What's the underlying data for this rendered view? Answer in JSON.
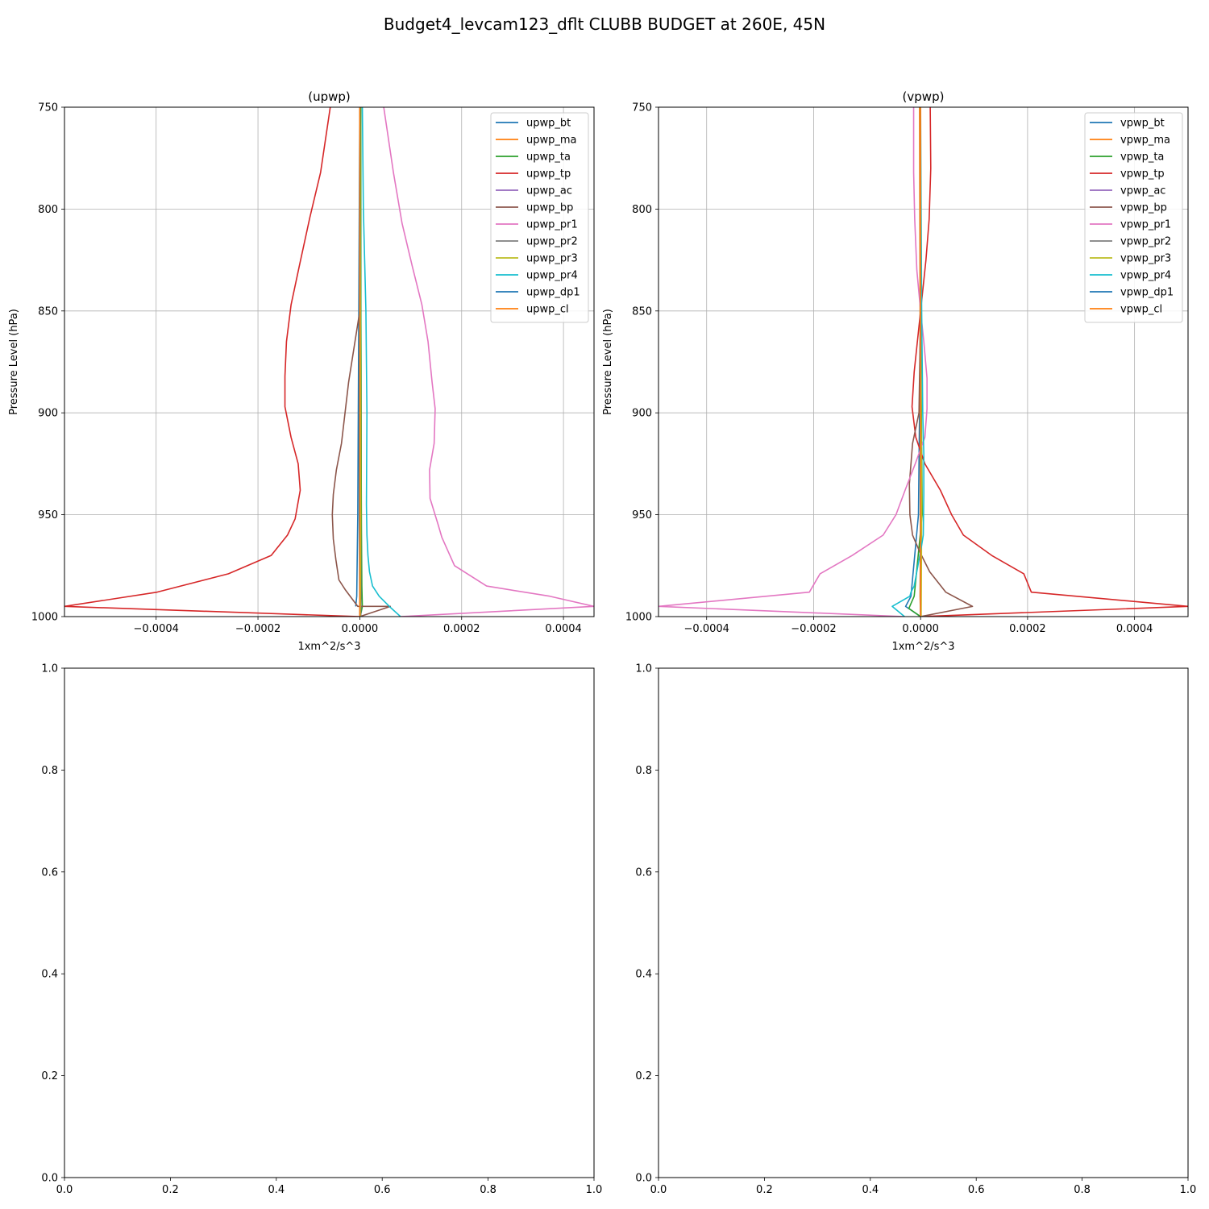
{
  "figure_title": "Budget4_levcam123_dflt CLUBB BUDGET at 260E, 45N",
  "chart_data": [
    {
      "type": "line",
      "title": "(upwp)",
      "xlabel": "1xm^2/s^3",
      "ylabel": "Pressure Level (hPa)",
      "xlim": [
        -0.00058,
        0.00046
      ],
      "ylim": [
        1000,
        750
      ],
      "xticks": [
        -0.0004,
        -0.0002,
        0.0,
        0.0002,
        0.0004
      ],
      "xtick_labels": [
        "−0.0004",
        "−0.0002",
        "0.0000",
        "0.0002",
        "0.0004"
      ],
      "yticks": [
        750,
        800,
        850,
        900,
        950,
        1000
      ],
      "ytick_labels": [
        "750",
        "800",
        "850",
        "900",
        "950",
        "1000"
      ],
      "grid": true,
      "legend_position": "upper right",
      "series": [
        {
          "name": "upwp_bt",
          "color": "#1f77b4",
          "x": [
            0,
            -2e-06,
            -4e-06,
            -6e-06,
            -8e-06
          ],
          "y": [
            750,
            850,
            950,
            990,
            995
          ]
        },
        {
          "name": "upwp_ma",
          "color": "#ff7f0e",
          "x": [
            0,
            2e-06,
            3e-06,
            2e-06,
            1e-06
          ],
          "y": [
            750,
            850,
            950,
            990,
            1000
          ]
        },
        {
          "name": "upwp_ta",
          "color": "#2ca02c",
          "x": [
            2e-06,
            2e-06,
            3e-06,
            4e-06,
            5e-06,
            1e-06
          ],
          "y": [
            750,
            850,
            950,
            985,
            995,
            1000
          ]
        },
        {
          "name": "upwp_tp",
          "color": "#d62728",
          "x": [
            -5.8e-05,
            -7.7e-05,
            -9.8e-05,
            -0.000118,
            -0.000135,
            -0.000144,
            -0.000147,
            -0.000147,
            -0.000135,
            -0.000121,
            -0.000117,
            -0.000127,
            -0.000142,
            -0.000174,
            -0.000258,
            -0.000398,
            -0.00058,
            0.0
          ],
          "y": [
            750,
            782,
            804,
            827,
            847,
            865,
            882,
            897,
            912,
            925,
            938,
            952,
            960,
            970,
            979,
            988,
            995,
            1000
          ]
        },
        {
          "name": "upwp_ac",
          "color": "#9467bd",
          "x": [
            0,
            1e-06,
            1e-06,
            0
          ],
          "y": [
            750,
            850,
            950,
            1000
          ]
        },
        {
          "name": "upwp_bp",
          "color": "#8c564b",
          "x": [
            0.0,
            -2.2e-05,
            -3.6e-05,
            -4.6e-05,
            -5.2e-05,
            -5.4e-05,
            -5.2e-05,
            -4.7e-05,
            -4.1e-05,
            -2.8e-05,
            -4e-06,
            6e-05,
            0.0
          ],
          "y": [
            850,
            885,
            915,
            928,
            940,
            950,
            962,
            972,
            982,
            987,
            995,
            995,
            1000
          ]
        },
        {
          "name": "upwp_pr1",
          "color": "#e377c2",
          "x": [
            4.7e-05,
            6.6e-05,
            8.3e-05,
            0.000103,
            0.000122,
            0.000134,
            0.000142,
            0.000148,
            0.000146,
            0.000137,
            0.000138,
            0.000154,
            0.000161,
            0.000186,
            0.000249,
            0.000373,
            0.00046,
            8e-05
          ],
          "y": [
            750,
            782,
            807,
            828,
            847,
            865,
            885,
            898,
            915,
            928,
            942,
            955,
            961,
            975,
            985,
            990,
            995,
            1000
          ]
        },
        {
          "name": "upwp_pr2",
          "color": "#7f7f7f",
          "x": [
            0,
            1e-06,
            2e-06,
            2e-06
          ],
          "y": [
            750,
            850,
            950,
            1000
          ]
        },
        {
          "name": "upwp_pr3",
          "color": "#bcbd22",
          "x": [
            0,
            1e-06,
            2e-06,
            1e-06
          ],
          "y": [
            750,
            850,
            950,
            1000
          ]
        },
        {
          "name": "upwp_pr4",
          "color": "#17becf",
          "x": [
            5e-06,
            7e-06,
            1.2e-05,
            1.4e-05,
            1.3e-05,
            1.4e-05,
            1.6e-05,
            1.9e-05,
            2.5e-05,
            3.8e-05,
            5.8e-05,
            8e-05
          ],
          "y": [
            750,
            800,
            850,
            900,
            945,
            960,
            970,
            978,
            985,
            990,
            995,
            1000
          ]
        },
        {
          "name": "upwp_dp1",
          "color": "#1f77b4",
          "x": [
            0,
            -1e-06,
            -1e-06,
            0
          ],
          "y": [
            750,
            850,
            950,
            1000
          ]
        },
        {
          "name": "upwp_cl",
          "color": "#ff7f0e",
          "x": [
            0,
            0,
            0,
            0
          ],
          "y": [
            750,
            850,
            950,
            1000
          ]
        }
      ]
    },
    {
      "type": "line",
      "title": "(vpwp)",
      "xlabel": "1xm^2/s^3",
      "ylabel": "Pressure Level (hPa)",
      "xlim": [
        -0.00049,
        0.0005
      ],
      "ylim": [
        1000,
        750
      ],
      "xticks": [
        -0.0004,
        -0.0002,
        0.0,
        0.0002,
        0.0004
      ],
      "xtick_labels": [
        "−0.0004",
        "−0.0002",
        "0.0000",
        "0.0002",
        "0.0004"
      ],
      "yticks": [
        750,
        800,
        850,
        900,
        950,
        1000
      ],
      "ytick_labels": [
        "750",
        "800",
        "850",
        "900",
        "950",
        "1000"
      ],
      "grid": true,
      "legend_position": "upper right",
      "series": [
        {
          "name": "vpwp_bt",
          "color": "#1f77b4",
          "x": [
            0,
            0,
            -4e-06,
            -1.8e-05,
            -2.8e-05,
            0
          ],
          "y": [
            750,
            850,
            950,
            990,
            995,
            1000
          ]
        },
        {
          "name": "vpwp_ma",
          "color": "#ff7f0e",
          "x": [
            -2e-06,
            -1e-06,
            0,
            -1e-06,
            0
          ],
          "y": [
            750,
            850,
            950,
            990,
            1000
          ]
        },
        {
          "name": "vpwp_ta",
          "color": "#2ca02c",
          "x": [
            0,
            0,
            3e-06,
            -1.2e-05,
            -2.2e-05,
            0
          ],
          "y": [
            750,
            850,
            950,
            990,
            996,
            1000
          ]
        },
        {
          "name": "vpwp_tp",
          "color": "#d62728",
          "x": [
            1.8e-05,
            1.9e-05,
            1.6e-05,
            1e-05,
            2e-06,
            -6e-06,
            -1.2e-05,
            -1.6e-05,
            -9e-06,
            8e-06,
            3.7e-05,
            5.8e-05,
            8e-05,
            0.000133,
            0.000193,
            0.000207,
            0.0005,
            0.0
          ],
          "y": [
            750,
            780,
            805,
            825,
            845,
            865,
            880,
            897,
            912,
            925,
            938,
            950,
            960,
            970,
            979,
            988,
            995,
            1000
          ]
        },
        {
          "name": "vpwp_ac",
          "color": "#9467bd",
          "x": [
            0,
            0,
            0,
            0
          ],
          "y": [
            750,
            850,
            950,
            1000
          ]
        },
        {
          "name": "vpwp_bp",
          "color": "#8c564b",
          "x": [
            0.0,
            -3e-06,
            -1.5e-05,
            -2.1e-05,
            -2e-05,
            -1.5e-05,
            -2e-06,
            1.7e-05,
            4.7e-05,
            9.7e-05,
            0.0
          ],
          "y": [
            850,
            900,
            915,
            935,
            950,
            960,
            968,
            978,
            988,
            995,
            1000
          ]
        },
        {
          "name": "vpwp_pr1",
          "color": "#e377c2",
          "x": [
            -1.3e-05,
            -1.3e-05,
            -1.1e-05,
            -7e-06,
            0.0,
            6e-06,
            1.2e-05,
            1.2e-05,
            8e-06,
            -1e-05,
            -2.9e-05,
            -4.6e-05,
            -7e-05,
            -0.000128,
            -0.000188,
            -0.000208,
            -0.00049,
            -3e-05
          ],
          "y": [
            750,
            782,
            805,
            830,
            850,
            865,
            883,
            898,
            912,
            925,
            938,
            950,
            960,
            970,
            979,
            988,
            995,
            1000
          ]
        },
        {
          "name": "vpwp_pr2",
          "color": "#7f7f7f",
          "x": [
            0,
            0,
            0,
            0
          ],
          "y": [
            750,
            850,
            950,
            1000
          ]
        },
        {
          "name": "vpwp_pr3",
          "color": "#bcbd22",
          "x": [
            0,
            0,
            2e-06,
            1e-06
          ],
          "y": [
            750,
            850,
            950,
            1000
          ]
        },
        {
          "name": "vpwp_pr4",
          "color": "#17becf",
          "x": [
            0,
            2e-06,
            4e-06,
            6e-06,
            6e-06,
            5e-06,
            2e-06,
            -5e-06,
            -1.2e-05,
            -1.8e-05,
            -2e-05,
            -5.3e-05,
            -3e-05
          ],
          "y": [
            750,
            850,
            900,
            920,
            940,
            960,
            965,
            975,
            985,
            988,
            990,
            995,
            1000
          ]
        },
        {
          "name": "vpwp_dp1",
          "color": "#1f77b4",
          "x": [
            0,
            0,
            0,
            0
          ],
          "y": [
            750,
            850,
            950,
            1000
          ]
        },
        {
          "name": "vpwp_cl",
          "color": "#ff7f0e",
          "x": [
            0,
            0,
            0,
            0
          ],
          "y": [
            750,
            850,
            950,
            1000
          ]
        }
      ]
    },
    {
      "type": "line",
      "title": "",
      "xlim": [
        0,
        1
      ],
      "ylim": [
        0,
        1
      ],
      "xticks": [
        0.0,
        0.2,
        0.4,
        0.6,
        0.8,
        1.0
      ],
      "xtick_labels": [
        "0.0",
        "0.2",
        "0.4",
        "0.6",
        "0.8",
        "1.0"
      ],
      "yticks": [
        0.0,
        0.2,
        0.4,
        0.6,
        0.8,
        1.0
      ],
      "ytick_labels": [
        "0.0",
        "0.2",
        "0.4",
        "0.6",
        "0.8",
        "1.0"
      ],
      "grid": false,
      "series": []
    },
    {
      "type": "line",
      "title": "",
      "xlim": [
        0,
        1
      ],
      "ylim": [
        0,
        1
      ],
      "xticks": [
        0.0,
        0.2,
        0.4,
        0.6,
        0.8,
        1.0
      ],
      "xtick_labels": [
        "0.0",
        "0.2",
        "0.4",
        "0.6",
        "0.8",
        "1.0"
      ],
      "yticks": [
        0.0,
        0.2,
        0.4,
        0.6,
        0.8,
        1.0
      ],
      "ytick_labels": [
        "0.0",
        "0.2",
        "0.4",
        "0.6",
        "0.8",
        "1.0"
      ],
      "grid": false,
      "series": []
    }
  ]
}
